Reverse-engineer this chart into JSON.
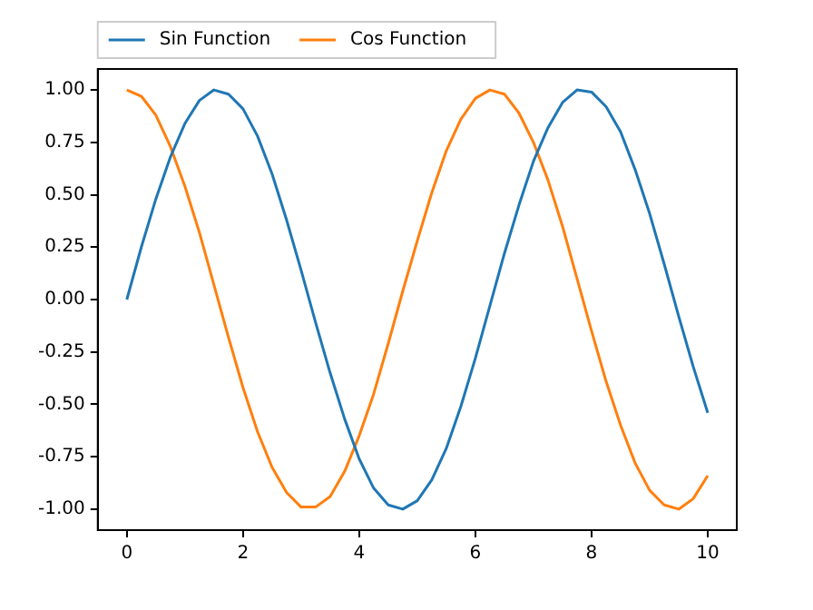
{
  "chart_data": {
    "type": "line",
    "x": [
      0,
      0.25,
      0.5,
      0.75,
      1,
      1.25,
      1.5,
      1.75,
      2,
      2.25,
      2.5,
      2.75,
      3,
      3.25,
      3.5,
      3.75,
      4,
      4.25,
      4.5,
      4.75,
      5,
      5.25,
      5.5,
      5.75,
      6,
      6.25,
      6.5,
      6.75,
      7,
      7.25,
      7.5,
      7.75,
      8,
      8.25,
      8.5,
      8.75,
      9,
      9.25,
      9.5,
      9.75,
      10
    ],
    "series": [
      {
        "name": "Sin Function",
        "color": "#1f77b4",
        "values": [
          0,
          0.25,
          0.48,
          0.68,
          0.84,
          0.95,
          1,
          0.98,
          0.91,
          0.78,
          0.6,
          0.38,
          0.14,
          -0.11,
          -0.35,
          -0.57,
          -0.76,
          -0.9,
          -0.98,
          -1,
          -0.96,
          -0.86,
          -0.71,
          -0.51,
          -0.28,
          -0.03,
          0.22,
          0.45,
          0.66,
          0.82,
          0.94,
          1,
          0.99,
          0.92,
          0.8,
          0.62,
          0.41,
          0.17,
          -0.08,
          -0.32,
          -0.54
        ]
      },
      {
        "name": "Cos Function",
        "color": "#ff7f0e",
        "values": [
          1,
          0.97,
          0.88,
          0.73,
          0.54,
          0.32,
          0.07,
          -0.18,
          -0.42,
          -0.63,
          -0.8,
          -0.92,
          -0.99,
          -0.99,
          -0.94,
          -0.82,
          -0.65,
          -0.45,
          -0.21,
          0.04,
          0.28,
          0.51,
          0.71,
          0.86,
          0.96,
          1,
          0.98,
          0.89,
          0.75,
          0.57,
          0.35,
          0.1,
          -0.15,
          -0.39,
          -0.6,
          -0.78,
          -0.91,
          -0.98,
          -1,
          -0.95,
          -0.84
        ]
      }
    ],
    "xlim": [
      -0.5,
      10.5
    ],
    "xticks": [
      0,
      2,
      4,
      6,
      8,
      10
    ],
    "ylim": [
      -1.1,
      1.1
    ],
    "yticks": [
      {
        "value": -1,
        "label": "-1.00"
      },
      {
        "value": -0.75,
        "label": "-0.75"
      },
      {
        "value": -0.5,
        "label": "-0.50"
      },
      {
        "value": -0.25,
        "label": "-0.25"
      },
      {
        "value": 0,
        "label": "0.00"
      },
      {
        "value": 0.25,
        "label": "0.25"
      },
      {
        "value": 0.5,
        "label": "0.50"
      },
      {
        "value": 0.75,
        "label": "0.75"
      },
      {
        "value": 1,
        "label": "1.00"
      }
    ],
    "grid": false,
    "legend": "top left",
    "marker": "none",
    "line_style": "solid"
  }
}
